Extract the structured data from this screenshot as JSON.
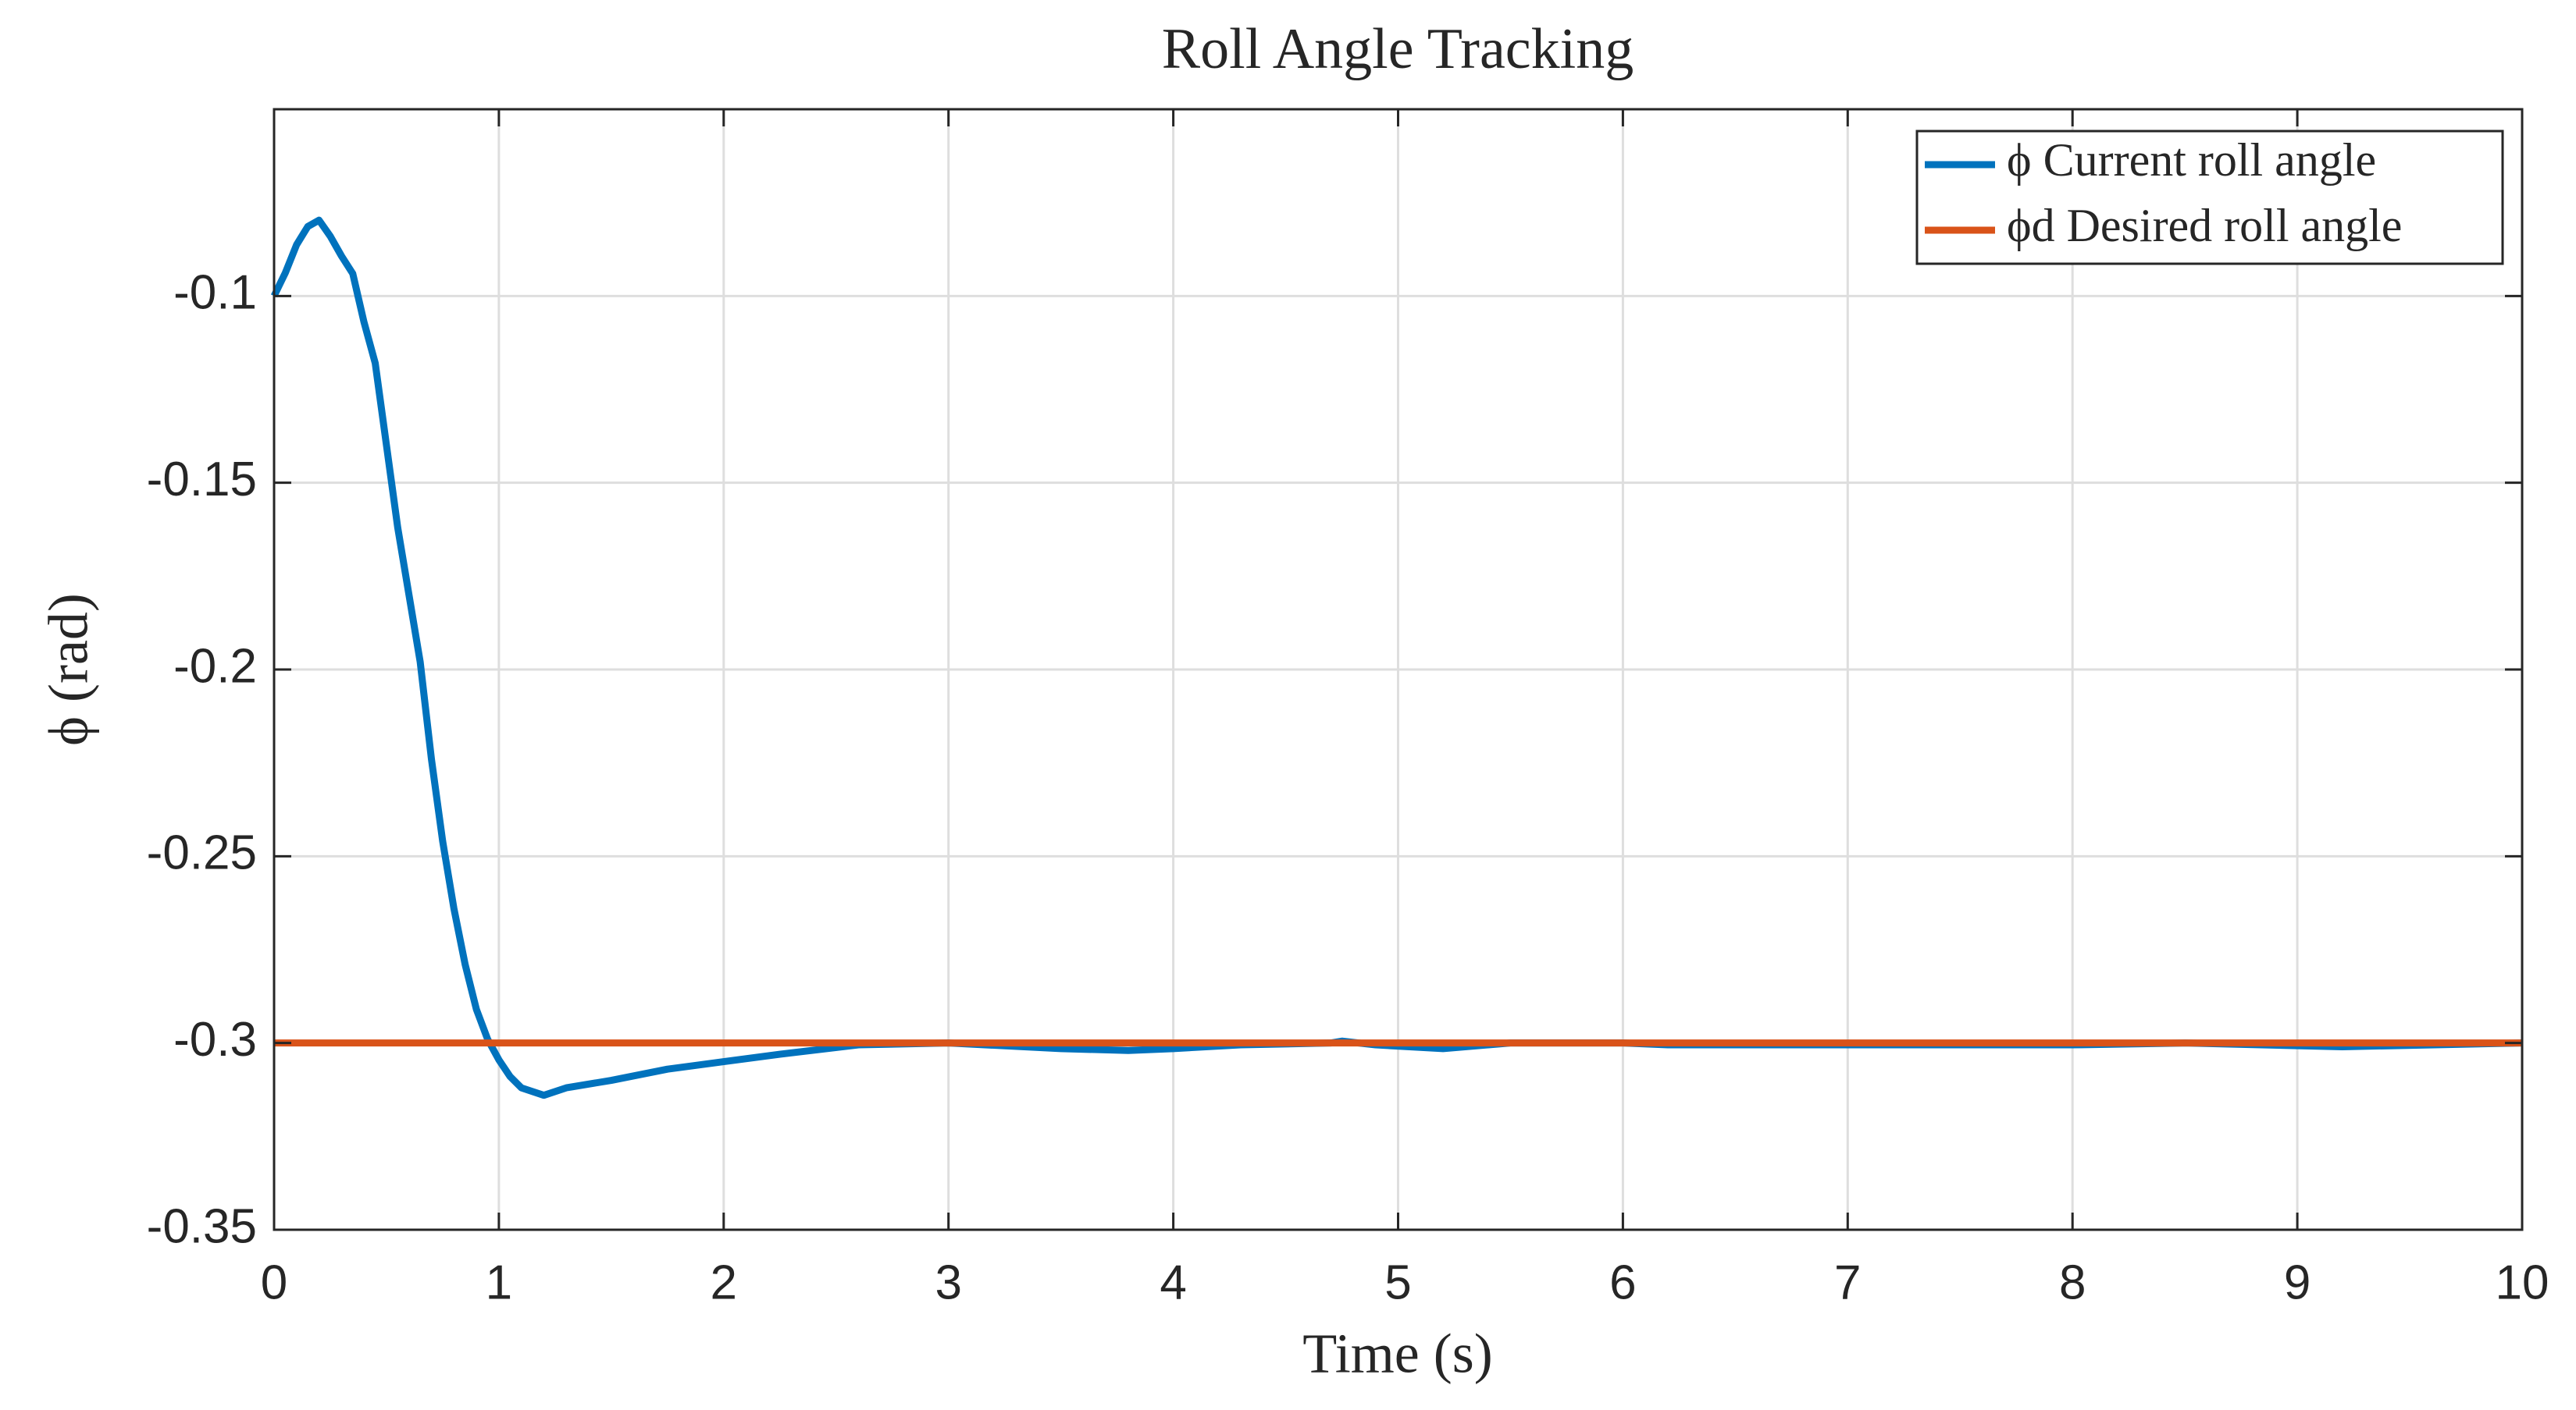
{
  "chart_data": {
    "type": "line",
    "title": "Roll Angle Tracking",
    "x_label": "Time (s)",
    "y_label": "ϕ (rad)",
    "xlim": [
      0,
      10
    ],
    "ylim": [
      -0.35,
      -0.05
    ],
    "xticks": [
      0,
      1,
      2,
      3,
      4,
      5,
      6,
      7,
      8,
      9,
      10
    ],
    "yticks": [
      -0.35,
      -0.3,
      -0.25,
      -0.2,
      -0.15,
      -0.1
    ],
    "grid": true,
    "legend": "upper right",
    "series": [
      {
        "name": "ϕ Current roll angle",
        "color": "#0072BD",
        "x": [
          0,
          0.05,
          0.1,
          0.15,
          0.2,
          0.25,
          0.3,
          0.35,
          0.4,
          0.45,
          0.5,
          0.55,
          0.6,
          0.65,
          0.7,
          0.75,
          0.8,
          0.85,
          0.9,
          0.95,
          1.0,
          1.05,
          1.1,
          1.2,
          1.3,
          1.5,
          1.75,
          2.0,
          2.25,
          2.6,
          3.0,
          3.5,
          3.8,
          4.0,
          4.3,
          4.7,
          4.75,
          4.9,
          5.2,
          5.5,
          6.0,
          6.2,
          7.0,
          8.0,
          8.5,
          9.2,
          10
        ],
        "values": [
          -0.1,
          -0.0938,
          -0.0863,
          -0.0814,
          -0.0797,
          -0.084,
          -0.0893,
          -0.094,
          -0.107,
          -0.118,
          -0.14,
          -0.162,
          -0.18,
          -0.198,
          -0.224,
          -0.246,
          -0.264,
          -0.279,
          -0.291,
          -0.299,
          -0.3045,
          -0.309,
          -0.312,
          -0.314,
          -0.312,
          -0.31,
          -0.307,
          -0.305,
          -0.303,
          -0.3005,
          -0.3,
          -0.3015,
          -0.302,
          -0.3015,
          -0.3005,
          -0.3,
          -0.2995,
          -0.3005,
          -0.3015,
          -0.3,
          -0.3,
          -0.3005,
          -0.3005,
          -0.3005,
          -0.3,
          -0.301,
          -0.3
        ]
      },
      {
        "name": "ϕd Desired roll angle",
        "color": "#D95319",
        "x": [
          0,
          10
        ],
        "values": [
          -0.3,
          -0.3
        ]
      }
    ]
  }
}
